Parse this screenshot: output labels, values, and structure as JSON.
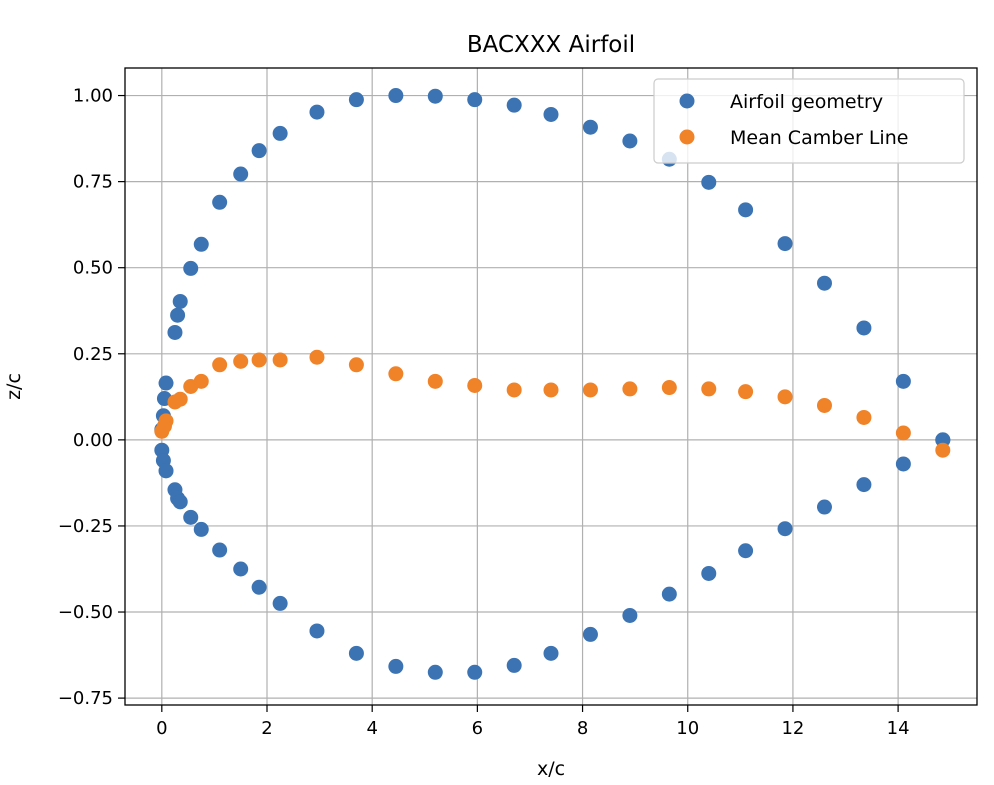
{
  "chart_data": {
    "type": "scatter",
    "title": "BACXXX Airfoil",
    "xlabel": "x/c",
    "ylabel": "z/c",
    "xlim": [
      -0.7,
      15.5
    ],
    "ylim": [
      -0.77,
      1.08
    ],
    "xticks": [
      0,
      2,
      4,
      6,
      8,
      10,
      12,
      14
    ],
    "xtick_labels": [
      "0",
      "2",
      "4",
      "6",
      "8",
      "10",
      "12",
      "14"
    ],
    "yticks": [
      1.0,
      0.75,
      0.5,
      0.25,
      0.0,
      -0.25,
      -0.5,
      -0.75
    ],
    "ytick_labels": [
      "1.00",
      "0.75",
      "0.50",
      "0.25",
      "0.00",
      "−0.25",
      "−0.50",
      "−0.75"
    ],
    "grid": true,
    "legend_position": "top-right",
    "series": [
      {
        "name": "Airfoil geometry",
        "color": "#3b73b3",
        "points": [
          [
            14.85,
            0.0
          ],
          [
            14.1,
            0.17
          ],
          [
            13.35,
            0.325
          ],
          [
            12.6,
            0.455
          ],
          [
            11.85,
            0.57
          ],
          [
            11.1,
            0.668
          ],
          [
            10.4,
            0.748
          ],
          [
            9.65,
            0.815
          ],
          [
            8.9,
            0.868
          ],
          [
            8.15,
            0.908
          ],
          [
            7.4,
            0.945
          ],
          [
            6.7,
            0.972
          ],
          [
            5.95,
            0.988
          ],
          [
            5.2,
            0.998
          ],
          [
            4.45,
            1.0
          ],
          [
            3.7,
            0.988
          ],
          [
            2.95,
            0.952
          ],
          [
            2.25,
            0.89
          ],
          [
            1.85,
            0.84
          ],
          [
            1.5,
            0.772
          ],
          [
            1.1,
            0.69
          ],
          [
            0.75,
            0.568
          ],
          [
            0.55,
            0.498
          ],
          [
            0.35,
            0.402
          ],
          [
            0.3,
            0.362
          ],
          [
            0.25,
            0.312
          ],
          [
            0.08,
            0.165
          ],
          [
            0.05,
            0.12
          ],
          [
            0.03,
            0.07
          ],
          [
            0.0,
            0.03
          ],
          [
            0.0,
            -0.03
          ],
          [
            0.03,
            -0.06
          ],
          [
            0.08,
            -0.09
          ],
          [
            0.25,
            -0.145
          ],
          [
            0.3,
            -0.17
          ],
          [
            0.35,
            -0.18
          ],
          [
            0.55,
            -0.225
          ],
          [
            0.75,
            -0.26
          ],
          [
            1.1,
            -0.32
          ],
          [
            1.5,
            -0.375
          ],
          [
            1.85,
            -0.428
          ],
          [
            2.25,
            -0.475
          ],
          [
            2.95,
            -0.555
          ],
          [
            3.7,
            -0.62
          ],
          [
            4.45,
            -0.658
          ],
          [
            5.2,
            -0.675
          ],
          [
            5.95,
            -0.675
          ],
          [
            6.7,
            -0.655
          ],
          [
            7.4,
            -0.62
          ],
          [
            8.15,
            -0.565
          ],
          [
            8.9,
            -0.51
          ],
          [
            9.65,
            -0.448
          ],
          [
            10.4,
            -0.388
          ],
          [
            11.1,
            -0.322
          ],
          [
            11.85,
            -0.258
          ],
          [
            12.6,
            -0.195
          ],
          [
            13.35,
            -0.13
          ],
          [
            14.1,
            -0.07
          ],
          [
            14.85,
            0.0
          ]
        ]
      },
      {
        "name": "Mean Camber Line",
        "color": "#f08228",
        "points": [
          [
            14.85,
            -0.03
          ],
          [
            14.1,
            0.02
          ],
          [
            13.35,
            0.065
          ],
          [
            12.6,
            0.1
          ],
          [
            11.85,
            0.125
          ],
          [
            11.1,
            0.14
          ],
          [
            10.4,
            0.148
          ],
          [
            9.65,
            0.152
          ],
          [
            8.9,
            0.148
          ],
          [
            8.15,
            0.145
          ],
          [
            7.4,
            0.145
          ],
          [
            6.7,
            0.145
          ],
          [
            5.95,
            0.158
          ],
          [
            5.2,
            0.17
          ],
          [
            4.45,
            0.192
          ],
          [
            3.7,
            0.218
          ],
          [
            2.95,
            0.24
          ],
          [
            2.25,
            0.232
          ],
          [
            1.85,
            0.232
          ],
          [
            1.5,
            0.228
          ],
          [
            1.1,
            0.218
          ],
          [
            0.75,
            0.17
          ],
          [
            0.55,
            0.155
          ],
          [
            0.35,
            0.118
          ],
          [
            0.25,
            0.11
          ],
          [
            0.08,
            0.055
          ],
          [
            0.05,
            0.04
          ],
          [
            0.0,
            0.025
          ]
        ]
      }
    ]
  }
}
